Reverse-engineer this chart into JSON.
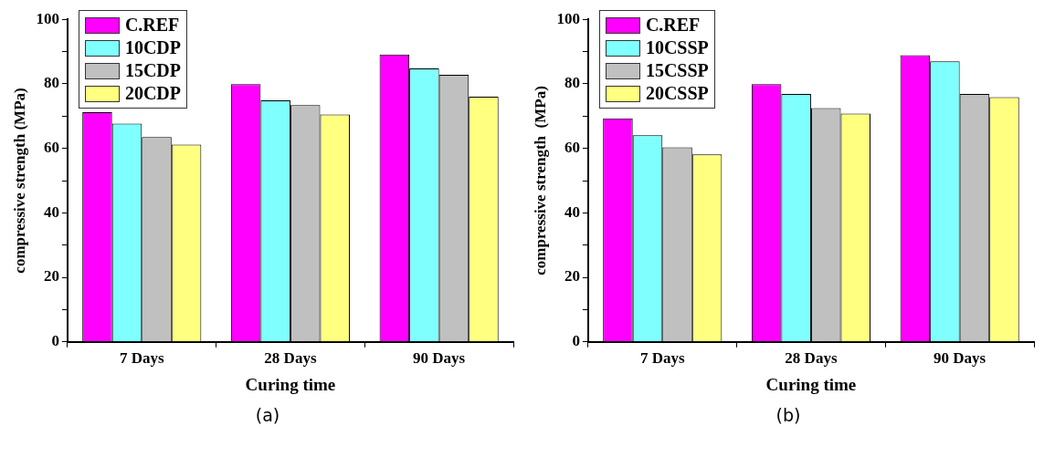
{
  "chart_data": [
    {
      "type": "bar",
      "xlabel": "Curing time",
      "ylabel": "compressive strength (MPa)",
      "categories": [
        "7 Days",
        "28 Days",
        "90 Days"
      ],
      "series": [
        {
          "name": "C.REF",
          "color": "#ff00ff",
          "values": [
            71.2,
            79.9,
            89.1
          ]
        },
        {
          "name": "10CDP",
          "color": "#80ffff",
          "values": [
            67.7,
            74.9,
            84.8
          ]
        },
        {
          "name": "15CDP",
          "color": "#c0c0c0",
          "values": [
            63.5,
            73.4,
            82.8
          ]
        },
        {
          "name": "20CDP",
          "color": "#ffff80",
          "values": [
            61.2,
            70.5,
            76.0
          ]
        }
      ],
      "ylim": [
        0,
        100
      ],
      "yticks": [
        0,
        {
          "value": 10,
          "label": null
        },
        20,
        {
          "value": 30,
          "label": null
        },
        40,
        {
          "value": 50,
          "label": null
        },
        60,
        {
          "value": 70,
          "label": null
        },
        80,
        {
          "value": 90,
          "label": null
        },
        100
      ],
      "grid": false,
      "legend": "top left",
      "annotations": [
        "(a)"
      ]
    },
    {
      "type": "bar",
      "xlabel": "Curing time",
      "ylabel": "compressive strength  (MPa)",
      "categories": [
        "7 Days",
        "28 Days",
        "90 Days"
      ],
      "series": [
        {
          "name": "C.REF",
          "color": "#ff00ff",
          "values": [
            69.3,
            79.9,
            88.9
          ]
        },
        {
          "name": "10CSSP",
          "color": "#80ffff",
          "values": [
            64.1,
            76.9,
            87.0
          ]
        },
        {
          "name": "15CSSP",
          "color": "#c0c0c0",
          "values": [
            60.3,
            72.5,
            76.9
          ]
        },
        {
          "name": "20CSSP",
          "color": "#ffff80",
          "values": [
            58.1,
            70.8,
            75.9
          ]
        }
      ],
      "ylim": [
        0,
        100
      ],
      "yticks": [
        0,
        {
          "value": 10,
          "label": null
        },
        20,
        {
          "value": 30,
          "label": null
        },
        40,
        {
          "value": 50,
          "label": null
        },
        60,
        {
          "value": 70,
          "label": null
        },
        80,
        {
          "value": 90,
          "label": null
        },
        100
      ],
      "grid": false,
      "legend": "top left",
      "annotations": [
        "(b)"
      ]
    }
  ]
}
